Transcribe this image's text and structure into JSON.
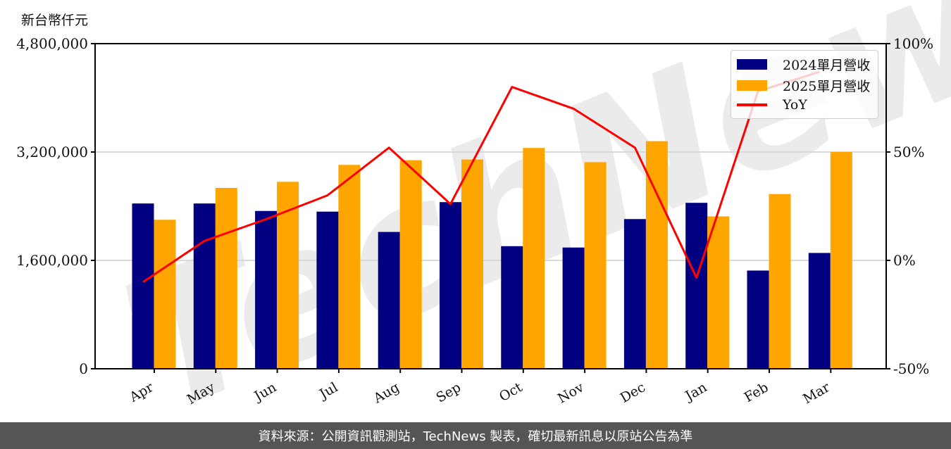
{
  "unit_label": "新台幣仟元",
  "footer": "資料來源：公開資訊觀測站，TechNews 製表，確切最新訊息以原站公告為準",
  "watermark": "TechNews",
  "colors": {
    "bar2024": "#000080",
    "bar2025": "#FFA500",
    "yoy": "#FF0000",
    "grid": "#d9d9d9",
    "footer_bg": "#555555"
  },
  "legend": [
    {
      "label": "2024單月營收",
      "type": "bar",
      "color": "#000080"
    },
    {
      "label": "2025單月營收",
      "type": "bar",
      "color": "#FFA500"
    },
    {
      "label": "YoY",
      "type": "line",
      "color": "#FF0000"
    }
  ],
  "chart_data": {
    "type": "bar",
    "title": "",
    "xlabel": "",
    "ylabel": "新台幣仟元",
    "y2label": "YoY",
    "categories": [
      "Apr",
      "May",
      "Jun",
      "Jul",
      "Aug",
      "Sep",
      "Oct",
      "Nov",
      "Dec",
      "Jan",
      "Feb",
      "Mar"
    ],
    "series": [
      {
        "name": "2024單月營收",
        "type": "bar",
        "axis": "left",
        "values": [
          2440000,
          2440000,
          2330000,
          2320000,
          2020000,
          2460000,
          1810000,
          1790000,
          2210000,
          2450000,
          1450000,
          1710000
        ]
      },
      {
        "name": "2025單月營收",
        "type": "bar",
        "axis": "left",
        "values": [
          2200000,
          2670000,
          2760000,
          3010000,
          3080000,
          3090000,
          3260000,
          3050000,
          3360000,
          2250000,
          2580000,
          3200000
        ]
      },
      {
        "name": "YoY",
        "type": "line",
        "axis": "right",
        "values": [
          -10,
          9,
          19,
          30,
          52,
          26,
          80,
          70,
          52,
          -8,
          78,
          87
        ]
      }
    ],
    "ylim": [
      0,
      4800000
    ],
    "yticks": [
      "0",
      "1,600,000",
      "3,200,000",
      "4,800,000"
    ],
    "y2lim": [
      -50,
      100
    ],
    "y2ticks": [
      "-50%",
      "0%",
      "50%",
      "100%"
    ],
    "grid": true,
    "legend_position": "upper right"
  }
}
